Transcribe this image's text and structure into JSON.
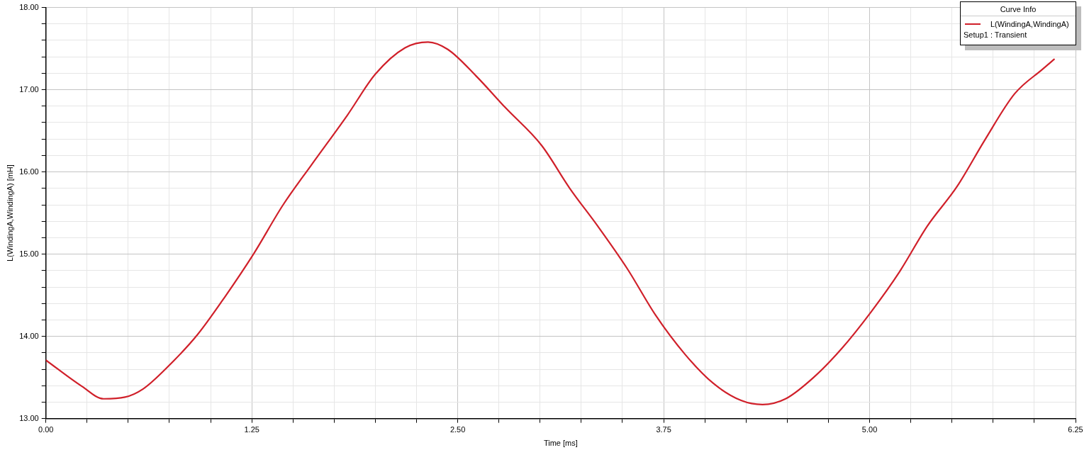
{
  "chart_data": {
    "type": "line",
    "xlabel": "Time [ms]",
    "ylabel": "L(WindingA,WindingA) [mH]",
    "legend_title": "Curve Info",
    "legend": "top right",
    "grid": true,
    "marker": "none",
    "line_style": "solid",
    "annotations": [
      "Setup1 : Transient"
    ],
    "xlim": [
      0,
      6.25
    ],
    "ylim": [
      13,
      18
    ],
    "xticks": [
      {
        "value": 0,
        "label": "0.00"
      },
      {
        "value": 0.25,
        "label": null
      },
      {
        "value": 0.5,
        "label": null
      },
      {
        "value": 0.75,
        "label": null
      },
      {
        "value": 1,
        "label": null
      },
      {
        "value": 1.25,
        "label": "1.25"
      },
      {
        "value": 1.5,
        "label": null
      },
      {
        "value": 1.75,
        "label": null
      },
      {
        "value": 2,
        "label": null
      },
      {
        "value": 2.25,
        "label": null
      },
      {
        "value": 2.5,
        "label": "2.50"
      },
      {
        "value": 2.75,
        "label": null
      },
      {
        "value": 3,
        "label": null
      },
      {
        "value": 3.25,
        "label": null
      },
      {
        "value": 3.5,
        "label": null
      },
      {
        "value": 3.75,
        "label": "3.75"
      },
      {
        "value": 4,
        "label": null
      },
      {
        "value": 4.25,
        "label": null
      },
      {
        "value": 4.5,
        "label": null
      },
      {
        "value": 4.75,
        "label": null
      },
      {
        "value": 5,
        "label": "5.00"
      },
      {
        "value": 5.25,
        "label": null
      },
      {
        "value": 5.5,
        "label": null
      },
      {
        "value": 5.75,
        "label": null
      },
      {
        "value": 6,
        "label": null
      },
      {
        "value": 6.25,
        "label": "6.25"
      }
    ],
    "yticks": [
      {
        "value": 13,
        "label": "13.00"
      },
      {
        "value": 13.2,
        "label": null
      },
      {
        "value": 13.4,
        "label": null
      },
      {
        "value": 13.6,
        "label": null
      },
      {
        "value": 13.8,
        "label": null
      },
      {
        "value": 14,
        "label": "14.00"
      },
      {
        "value": 14.2,
        "label": null
      },
      {
        "value": 14.4,
        "label": null
      },
      {
        "value": 14.6,
        "label": null
      },
      {
        "value": 14.8,
        "label": null
      },
      {
        "value": 15,
        "label": "15.00"
      },
      {
        "value": 15.2,
        "label": null
      },
      {
        "value": 15.4,
        "label": null
      },
      {
        "value": 15.6,
        "label": null
      },
      {
        "value": 15.8,
        "label": null
      },
      {
        "value": 16,
        "label": "16.00"
      },
      {
        "value": 16.2,
        "label": null
      },
      {
        "value": 16.4,
        "label": null
      },
      {
        "value": 16.6,
        "label": null
      },
      {
        "value": 16.8,
        "label": null
      },
      {
        "value": 17,
        "label": "17.00"
      },
      {
        "value": 17.2,
        "label": null
      },
      {
        "value": 17.4,
        "label": null
      },
      {
        "value": 17.6,
        "label": null
      },
      {
        "value": 17.8,
        "label": null
      },
      {
        "value": 18,
        "label": "18.00"
      }
    ],
    "series": [
      {
        "name": "L(WindingA,WindingA)",
        "color": "#d0202a",
        "x": [
          0,
          0.22,
          0.35,
          0.48,
          0.59,
          0.74,
          0.92,
          1.09,
          1.26,
          1.44,
          1.61,
          1.83,
          2.0,
          2.18,
          2.32,
          2.44,
          2.61,
          2.79,
          3.01,
          3.18,
          3.35,
          3.53,
          3.7,
          3.88,
          4.05,
          4.22,
          4.35,
          4.49,
          4.66,
          4.83,
          5.01,
          5.18,
          5.35,
          5.53,
          5.7,
          5.88,
          6.05,
          6.12
        ],
        "values": [
          13.71,
          13.39,
          13.24,
          13.26,
          13.36,
          13.63,
          14.02,
          14.49,
          15.0,
          15.6,
          16.08,
          16.69,
          17.19,
          17.51,
          17.58,
          17.49,
          17.17,
          16.78,
          16.32,
          15.8,
          15.34,
          14.82,
          14.26,
          13.78,
          13.43,
          13.22,
          13.17,
          13.24,
          13.5,
          13.85,
          14.3,
          14.78,
          15.34,
          15.82,
          16.39,
          16.95,
          17.25,
          17.37
        ]
      }
    ]
  }
}
